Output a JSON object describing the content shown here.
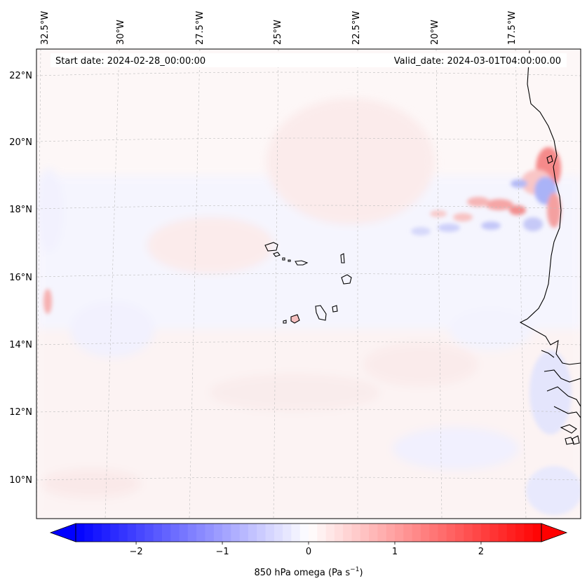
{
  "map": {
    "header": {
      "start_date": "Start date: 2024-02-28_00:00:00",
      "valid_date": "Valid_date: 2024-03-01T04:00:00.00"
    },
    "lon_labels": [
      "32.5°W",
      "30°W",
      "27.5°W",
      "25°W",
      "22.5°W",
      "20°W",
      "17.5°W"
    ],
    "lat_labels": [
      "22°N",
      "20°N",
      "18°N",
      "16°N",
      "14°N",
      "12°N",
      "10°N"
    ],
    "field": "850 hPa omega",
    "colormap": "bwr",
    "colors": {
      "negative": "#0000ff",
      "zero": "#ffffff",
      "positive": "#ff0000",
      "coast": "#000000",
      "grid": "#b0b0b0"
    }
  },
  "colorbar": {
    "label": "850 hPa omega (Pa s",
    "label_exp": "−1",
    "label_close": ")",
    "range": [
      -2.7,
      2.7
    ],
    "ticks": [
      {
        "value": -2,
        "label": "−2"
      },
      {
        "value": -1,
        "label": "−1"
      },
      {
        "value": 0,
        "label": "0"
      },
      {
        "value": 1,
        "label": "1"
      },
      {
        "value": 2,
        "label": "2"
      }
    ]
  }
}
